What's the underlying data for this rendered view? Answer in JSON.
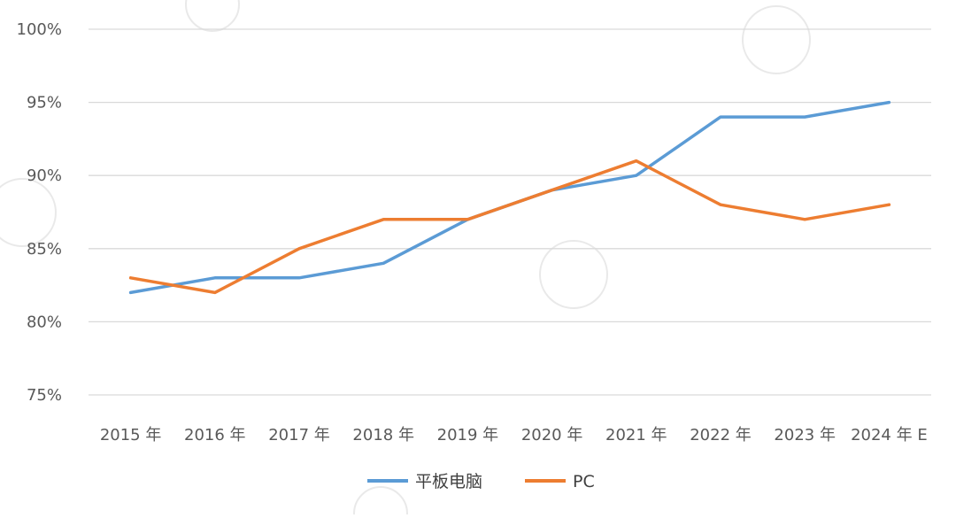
{
  "chart_data": {
    "type": "line",
    "title": "",
    "xlabel": "",
    "ylabel": "",
    "categories": [
      "2015 年",
      "2016 年",
      "2017 年",
      "2018 年",
      "2019 年",
      "2020 年",
      "2021 年",
      "2022 年",
      "2023 年",
      "2024 年 E"
    ],
    "yticks": [
      "100%",
      "95%",
      "90%",
      "85%",
      "80%",
      "75%"
    ],
    "ytick_values": [
      100,
      95,
      90,
      85,
      80,
      75
    ],
    "ylim": [
      75,
      100
    ],
    "grid": true,
    "legend_position": "bottom",
    "series": [
      {
        "name": "平板电脑",
        "color": "#5b9bd5",
        "values": [
          82,
          83,
          83,
          84,
          87,
          89,
          90,
          94,
          94,
          95
        ]
      },
      {
        "name": "PC",
        "color": "#ed7d31",
        "values": [
          83,
          82,
          85,
          87,
          87,
          89,
          91,
          88,
          87,
          88
        ]
      }
    ]
  }
}
